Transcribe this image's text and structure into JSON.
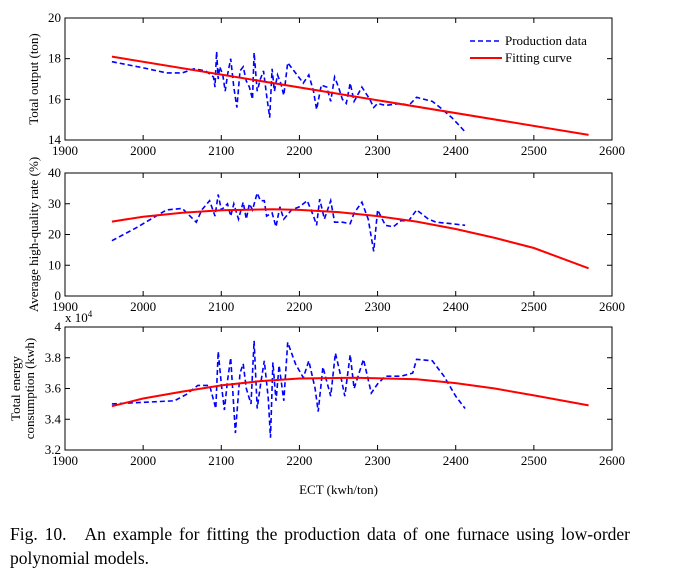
{
  "chart_data": [
    {
      "type": "line",
      "ylabel": "Total output (ton)",
      "xlim": [
        1900,
        2600
      ],
      "ylim": [
        14,
        20
      ],
      "xticks": [
        "1900",
        "2000",
        "2100",
        "2200",
        "2300",
        "2400",
        "2500",
        "2600"
      ],
      "yticks": [
        "14",
        "16",
        "18",
        "20"
      ],
      "legend": {
        "placement": "top-right",
        "entries": [
          "Production data",
          "Fitting curve"
        ]
      },
      "series": [
        {
          "name": "Production data",
          "style": "dashed",
          "color": "#0000ff",
          "points": [
            [
              1960,
              17.85
            ],
            [
              2000,
              17.55
            ],
            [
              2030,
              17.3
            ],
            [
              2050,
              17.3
            ],
            [
              2065,
              17.5
            ],
            [
              2080,
              17.4
            ],
            [
              2090,
              17.1
            ],
            [
              2092,
              16.6
            ],
            [
              2094,
              18.35
            ],
            [
              2096,
              17.0
            ],
            [
              2098,
              17.6
            ],
            [
              2102,
              17.2
            ],
            [
              2105,
              16.4
            ],
            [
              2108,
              17.2
            ],
            [
              2112,
              18.0
            ],
            [
              2116,
              16.6
            ],
            [
              2120,
              15.6
            ],
            [
              2124,
              17.4
            ],
            [
              2128,
              17.6
            ],
            [
              2132,
              16.9
            ],
            [
              2136,
              16.6
            ],
            [
              2140,
              16.0
            ],
            [
              2142,
              18.3
            ],
            [
              2146,
              16.4
            ],
            [
              2150,
              17.0
            ],
            [
              2154,
              17.4
            ],
            [
              2158,
              16.2
            ],
            [
              2162,
              15.1
            ],
            [
              2165,
              17.5
            ],
            [
              2168,
              16.4
            ],
            [
              2172,
              17.2
            ],
            [
              2176,
              16.8
            ],
            [
              2180,
              16.2
            ],
            [
              2185,
              17.8
            ],
            [
              2195,
              17.3
            ],
            [
              2205,
              16.8
            ],
            [
              2212,
              17.2
            ],
            [
              2218,
              16.4
            ],
            [
              2222,
              15.5
            ],
            [
              2228,
              16.7
            ],
            [
              2235,
              16.6
            ],
            [
              2240,
              15.9
            ],
            [
              2245,
              17.1
            ],
            [
              2250,
              16.6
            ],
            [
              2255,
              16.0
            ],
            [
              2260,
              15.8
            ],
            [
              2265,
              16.8
            ],
            [
              2270,
              15.9
            ],
            [
              2280,
              16.6
            ],
            [
              2290,
              16.0
            ],
            [
              2295,
              15.6
            ],
            [
              2300,
              15.8
            ],
            [
              2310,
              15.7
            ],
            [
              2330,
              15.8
            ],
            [
              2340,
              15.7
            ],
            [
              2350,
              16.1
            ],
            [
              2370,
              15.9
            ],
            [
              2380,
              15.6
            ],
            [
              2395,
              15.1
            ],
            [
              2405,
              14.7
            ],
            [
              2412,
              14.4
            ]
          ]
        },
        {
          "name": "Fitting curve",
          "style": "solid",
          "color": "#ff0000",
          "points": [
            [
              1960,
              18.1
            ],
            [
              2570,
              14.25
            ]
          ]
        }
      ]
    },
    {
      "type": "line",
      "ylabel": "Average high-quality rate (%)",
      "xlim": [
        1900,
        2600
      ],
      "ylim": [
        0,
        40
      ],
      "xticks": [
        "1900",
        "2000",
        "2100",
        "2200",
        "2300",
        "2400",
        "2500",
        "2600"
      ],
      "yticks": [
        "0",
        "10",
        "20",
        "30",
        "40"
      ],
      "series": [
        {
          "name": "Production data",
          "style": "dashed",
          "color": "#0000ff",
          "points": [
            [
              1960,
              18
            ],
            [
              1990,
              22
            ],
            [
              2010,
              25
            ],
            [
              2030,
              28
            ],
            [
              2050,
              28.5
            ],
            [
              2060,
              26
            ],
            [
              2068,
              24
            ],
            [
              2075,
              28
            ],
            [
              2085,
              31
            ],
            [
              2092,
              26
            ],
            [
              2096,
              33
            ],
            [
              2100,
              28
            ],
            [
              2108,
              30
            ],
            [
              2112,
              26
            ],
            [
              2116,
              30
            ],
            [
              2122,
              25
            ],
            [
              2128,
              30.5
            ],
            [
              2132,
              25
            ],
            [
              2136,
              30
            ],
            [
              2140,
              28
            ],
            [
              2146,
              33.5
            ],
            [
              2150,
              31
            ],
            [
              2155,
              31
            ],
            [
              2158,
              26
            ],
            [
              2165,
              27
            ],
            [
              2170,
              22.5
            ],
            [
              2175,
              29
            ],
            [
              2180,
              25
            ],
            [
              2190,
              28
            ],
            [
              2200,
              29
            ],
            [
              2210,
              31
            ],
            [
              2218,
              26
            ],
            [
              2222,
              23
            ],
            [
              2226,
              31.5
            ],
            [
              2232,
              25
            ],
            [
              2240,
              31
            ],
            [
              2245,
              24
            ],
            [
              2255,
              24
            ],
            [
              2265,
              23.5
            ],
            [
              2270,
              27
            ],
            [
              2280,
              30.5
            ],
            [
              2288,
              25
            ],
            [
              2295,
              14.5
            ],
            [
              2300,
              28
            ],
            [
              2310,
              23
            ],
            [
              2320,
              22.5
            ],
            [
              2330,
              24.5
            ],
            [
              2340,
              24.5
            ],
            [
              2350,
              28
            ],
            [
              2365,
              25
            ],
            [
              2375,
              24
            ],
            [
              2395,
              23.5
            ],
            [
              2412,
              23
            ]
          ]
        },
        {
          "name": "Fitting curve",
          "style": "solid",
          "color": "#ff0000",
          "points": [
            [
              1960,
              24.2
            ],
            [
              2000,
              25.8
            ],
            [
              2050,
              27.1
            ],
            [
              2100,
              27.9
            ],
            [
              2165,
              28.2
            ],
            [
              2200,
              28.0
            ],
            [
              2250,
              27.3
            ],
            [
              2300,
              26.0
            ],
            [
              2350,
              24.2
            ],
            [
              2400,
              21.8
            ],
            [
              2450,
              18.9
            ],
            [
              2500,
              15.6
            ],
            [
              2570,
              9.0
            ]
          ]
        }
      ]
    },
    {
      "type": "line",
      "ylabel": "Total energy consumption (kwh)",
      "ylabel_lines": [
        "Total energy",
        "consumption (kwh)"
      ],
      "xlabel": "ECT (kwh/ton)",
      "multiplier": "x 10",
      "multiplier_exp": "4",
      "xlim": [
        1900,
        2600
      ],
      "ylim": [
        3.2,
        4
      ],
      "xticks": [
        "1900",
        "2000",
        "2100",
        "2200",
        "2300",
        "2400",
        "2500",
        "2600"
      ],
      "yticks": [
        "3.2",
        "3.4",
        "3.6",
        "3.8",
        "4"
      ],
      "series": [
        {
          "name": "Production data",
          "style": "dashed",
          "color": "#0000ff",
          "points": [
            [
              1960,
              3.5
            ],
            [
              2000,
              3.51
            ],
            [
              2040,
              3.52
            ],
            [
              2055,
              3.56
            ],
            [
              2070,
              3.62
            ],
            [
              2085,
              3.62
            ],
            [
              2093,
              3.47
            ],
            [
              2096,
              3.84
            ],
            [
              2100,
              3.63
            ],
            [
              2104,
              3.46
            ],
            [
              2108,
              3.65
            ],
            [
              2112,
              3.8
            ],
            [
              2118,
              3.31
            ],
            [
              2124,
              3.7
            ],
            [
              2128,
              3.76
            ],
            [
              2132,
              3.6
            ],
            [
              2138,
              3.5
            ],
            [
              2142,
              3.91
            ],
            [
              2146,
              3.47
            ],
            [
              2150,
              3.62
            ],
            [
              2155,
              3.78
            ],
            [
              2160,
              3.54
            ],
            [
              2163,
              3.28
            ],
            [
              2166,
              3.77
            ],
            [
              2170,
              3.52
            ],
            [
              2174,
              3.75
            ],
            [
              2180,
              3.52
            ],
            [
              2185,
              3.9
            ],
            [
              2195,
              3.76
            ],
            [
              2205,
              3.67
            ],
            [
              2212,
              3.78
            ],
            [
              2220,
              3.6
            ],
            [
              2224,
              3.45
            ],
            [
              2230,
              3.74
            ],
            [
              2240,
              3.55
            ],
            [
              2246,
              3.83
            ],
            [
              2252,
              3.7
            ],
            [
              2258,
              3.55
            ],
            [
              2265,
              3.82
            ],
            [
              2270,
              3.6
            ],
            [
              2282,
              3.79
            ],
            [
              2292,
              3.57
            ],
            [
              2300,
              3.63
            ],
            [
              2310,
              3.68
            ],
            [
              2330,
              3.68
            ],
            [
              2345,
              3.7
            ],
            [
              2350,
              3.79
            ],
            [
              2370,
              3.78
            ],
            [
              2385,
              3.68
            ],
            [
              2400,
              3.55
            ],
            [
              2412,
              3.47
            ]
          ]
        },
        {
          "name": "Fitting curve",
          "style": "solid",
          "color": "#ff0000",
          "points": [
            [
              1960,
              3.485
            ],
            [
              2000,
              3.535
            ],
            [
              2050,
              3.58
            ],
            [
              2100,
              3.62
            ],
            [
              2150,
              3.648
            ],
            [
              2200,
              3.665
            ],
            [
              2270,
              3.67
            ],
            [
              2350,
              3.66
            ],
            [
              2400,
              3.635
            ],
            [
              2450,
              3.6
            ],
            [
              2500,
              3.555
            ],
            [
              2570,
              3.49
            ]
          ]
        }
      ]
    }
  ],
  "caption": {
    "label": "Fig. 10.",
    "text": "An example for fitting the production data of one furnace using low-order polynomial models."
  }
}
